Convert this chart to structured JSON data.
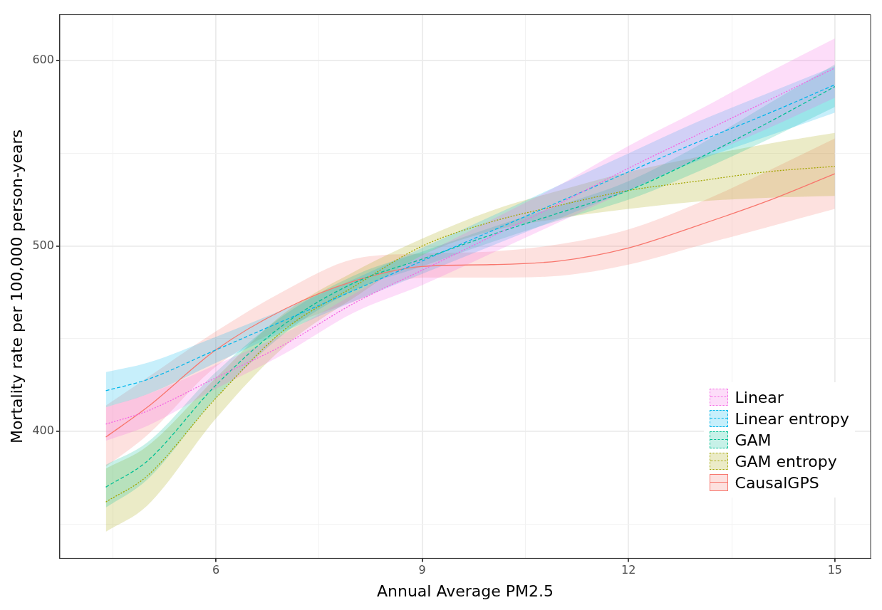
{
  "chart_data": {
    "type": "line",
    "xlabel": "Annual Average PM2.5",
    "ylabel": "Mortality rate per 100,000 person-years",
    "x": [
      4.4,
      5,
      6,
      7,
      8,
      9,
      10,
      11,
      12,
      13,
      14,
      15
    ],
    "xlim": [
      3.73,
      15.52
    ],
    "xticks": [
      {
        "value": 4.5,
        "label": null
      },
      6,
      {
        "value": 7.5,
        "label": null
      },
      9,
      {
        "value": 10.5,
        "label": null
      },
      12,
      {
        "value": 13.5,
        "label": null
      },
      15
    ],
    "ylim": [
      331.6,
      624.8
    ],
    "yticks": [
      {
        "value": 350,
        "label": null
      },
      400,
      {
        "value": 450,
        "label": null
      },
      500,
      {
        "value": 550,
        "label": null
      },
      600
    ],
    "grid": true,
    "legend": "bottom right",
    "marker": "none",
    "series": [
      {
        "name": "Linear",
        "color": "#f564e3",
        "line_style": "dotted",
        "values": [
          404,
          411,
          429,
          447,
          469,
          487,
          505,
          523,
          542,
          560,
          578,
          596
        ],
        "lower": [
          395,
          403,
          423,
          442,
          464,
          479,
          496,
          513,
          530,
          547,
          563,
          580
        ],
        "upper": [
          413,
          420,
          436,
          453,
          474,
          495,
          514,
          533,
          554,
          573,
          593,
          612
        ]
      },
      {
        "name": "Linear entropy",
        "color": "#00b6eb",
        "line_style": "dashed",
        "values": [
          422,
          428,
          444,
          460,
          476,
          492,
          508,
          524,
          540,
          556,
          571,
          587
        ],
        "lower": [
          413,
          420,
          437,
          454,
          470,
          485,
          500,
          515,
          530,
          546,
          559,
          572
        ],
        "upper": [
          432,
          437,
          451,
          466,
          482,
          499,
          516,
          533,
          550,
          567,
          582,
          597
        ]
      },
      {
        "name": "GAM",
        "color": "#00c094",
        "line_style": "dashed",
        "values": [
          370,
          384,
          425,
          458,
          480,
          493,
          506,
          518,
          530,
          547,
          566,
          586
        ],
        "lower": [
          359,
          374,
          418,
          453,
          476,
          489,
          502,
          514,
          525,
          540,
          557,
          575
        ],
        "upper": [
          382,
          394,
          432,
          463,
          484,
          497,
          510,
          522,
          535,
          554,
          576,
          598
        ]
      },
      {
        "name": "GAM entropy",
        "color": "#a3a500",
        "line_style": "dotted",
        "values": [
          362,
          376,
          418,
          455,
          478,
          500,
          513,
          522,
          530,
          535,
          540,
          543
        ],
        "lower": [
          346,
          360,
          407,
          446,
          472,
          495,
          508,
          515,
          520,
          524,
          526,
          527
        ],
        "upper": [
          380,
          392,
          429,
          464,
          486,
          504,
          519,
          530,
          540,
          548,
          555,
          561
        ]
      },
      {
        "name": "CausalGPS",
        "color": "#f8766d",
        "line_style": "solid",
        "values": [
          397,
          413,
          444,
          466,
          481,
          489,
          490,
          492,
          499,
          511,
          524,
          539
        ],
        "lower": [
          381,
          398,
          435,
          456,
          470,
          483,
          483,
          484,
          490,
          500,
          510,
          520
        ],
        "upper": [
          414,
          429,
          454,
          476,
          493,
          496,
          497,
          501,
          509,
          523,
          540,
          558
        ]
      }
    ]
  }
}
